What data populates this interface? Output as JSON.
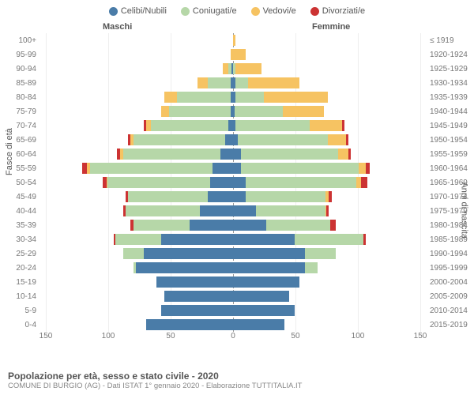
{
  "legend": [
    {
      "label": "Celibi/Nubili",
      "color": "#4a7ca8"
    },
    {
      "label": "Coniugati/e",
      "color": "#b6d7a8"
    },
    {
      "label": "Vedovi/e",
      "color": "#f6c362"
    },
    {
      "label": "Divorziati/e",
      "color": "#cc3333"
    }
  ],
  "headers": {
    "left": "Maschi",
    "right": "Femmine"
  },
  "axis_labels": {
    "left": "Fasce di età",
    "right": "Anni di nascita"
  },
  "x_ticks": [
    -150,
    -100,
    -50,
    0,
    50,
    100,
    150
  ],
  "x_max": 150,
  "title": "Popolazione per età, sesso e stato civile - 2020",
  "subtitle": "COMUNE DI BURGIO (AG) - Dati ISTAT 1° gennaio 2020 - Elaborazione TUTTITALIA.IT",
  "rows": [
    {
      "age": "100+",
      "year": "≤ 1919",
      "m": [
        0,
        0,
        0,
        0
      ],
      "f": [
        0,
        0,
        2,
        0
      ]
    },
    {
      "age": "95-99",
      "year": "1920-1924",
      "m": [
        0,
        0,
        2,
        0
      ],
      "f": [
        0,
        0,
        10,
        0
      ]
    },
    {
      "age": "90-94",
      "year": "1925-1929",
      "m": [
        1,
        3,
        4,
        0
      ],
      "f": [
        0,
        2,
        20,
        0
      ]
    },
    {
      "age": "85-89",
      "year": "1930-1934",
      "m": [
        2,
        18,
        8,
        0
      ],
      "f": [
        2,
        10,
        40,
        0
      ]
    },
    {
      "age": "80-84",
      "year": "1935-1939",
      "m": [
        2,
        42,
        10,
        0
      ],
      "f": [
        2,
        22,
        50,
        0
      ]
    },
    {
      "age": "75-79",
      "year": "1940-1944",
      "m": [
        2,
        48,
        6,
        0
      ],
      "f": [
        1,
        38,
        32,
        0
      ]
    },
    {
      "age": "70-74",
      "year": "1945-1949",
      "m": [
        4,
        60,
        4,
        2
      ],
      "f": [
        2,
        58,
        25,
        2
      ]
    },
    {
      "age": "65-69",
      "year": "1950-1954",
      "m": [
        6,
        72,
        2,
        2
      ],
      "f": [
        4,
        70,
        14,
        2
      ]
    },
    {
      "age": "60-64",
      "year": "1955-1959",
      "m": [
        10,
        76,
        2,
        3
      ],
      "f": [
        6,
        76,
        8,
        2
      ]
    },
    {
      "age": "55-59",
      "year": "1960-1964",
      "m": [
        16,
        96,
        2,
        4
      ],
      "f": [
        6,
        92,
        6,
        3
      ]
    },
    {
      "age": "50-54",
      "year": "1965-1969",
      "m": [
        18,
        80,
        1,
        3
      ],
      "f": [
        10,
        86,
        4,
        5
      ]
    },
    {
      "age": "45-49",
      "year": "1970-1974",
      "m": [
        20,
        62,
        0,
        2
      ],
      "f": [
        10,
        62,
        3,
        2
      ]
    },
    {
      "age": "40-44",
      "year": "1975-1979",
      "m": [
        26,
        58,
        0,
        2
      ],
      "f": [
        18,
        54,
        1,
        2
      ]
    },
    {
      "age": "35-39",
      "year": "1980-1984",
      "m": [
        34,
        44,
        0,
        2
      ],
      "f": [
        26,
        50,
        0,
        4
      ]
    },
    {
      "age": "30-34",
      "year": "1985-1989",
      "m": [
        56,
        36,
        0,
        1
      ],
      "f": [
        48,
        54,
        0,
        2
      ]
    },
    {
      "age": "25-29",
      "year": "1990-1994",
      "m": [
        70,
        16,
        0,
        0
      ],
      "f": [
        56,
        24,
        0,
        0
      ]
    },
    {
      "age": "20-24",
      "year": "1995-1999",
      "m": [
        76,
        2,
        0,
        0
      ],
      "f": [
        56,
        10,
        0,
        0
      ]
    },
    {
      "age": "15-19",
      "year": "2000-2004",
      "m": [
        60,
        0,
        0,
        0
      ],
      "f": [
        52,
        0,
        0,
        0
      ]
    },
    {
      "age": "10-14",
      "year": "2005-2009",
      "m": [
        54,
        0,
        0,
        0
      ],
      "f": [
        44,
        0,
        0,
        0
      ]
    },
    {
      "age": "5-9",
      "year": "2010-2014",
      "m": [
        56,
        0,
        0,
        0
      ],
      "f": [
        48,
        0,
        0,
        0
      ]
    },
    {
      "age": "0-4",
      "year": "2015-2019",
      "m": [
        68,
        0,
        0,
        0
      ],
      "f": [
        40,
        0,
        0,
        0
      ]
    }
  ],
  "colors": {
    "background": "#ffffff",
    "text": "#666666",
    "grid": "#eeeeee",
    "center": "#999999"
  }
}
